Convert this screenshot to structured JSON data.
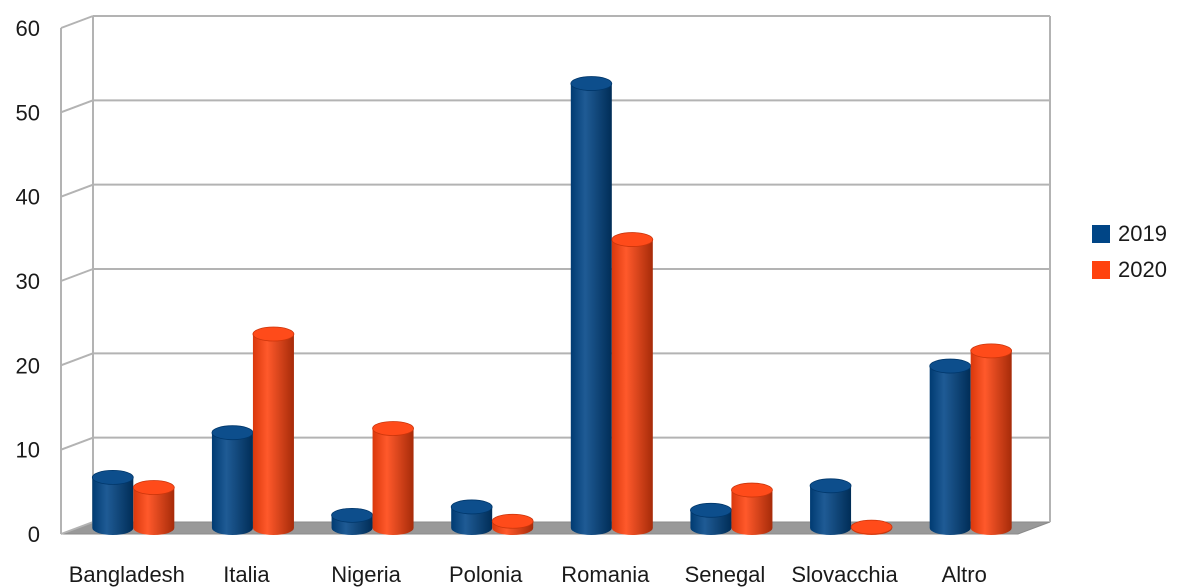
{
  "chart_data": {
    "type": "bar",
    "categories": [
      "Bangladesh",
      "Italia",
      "Nigeria",
      "Polonia",
      "Romania",
      "Senegal",
      "Slovacchia",
      "Altro"
    ],
    "series": [
      {
        "name": "2019",
        "color": "#004586",
        "values": [
          6,
          11.3,
          1.5,
          2.5,
          52.7,
          2.1,
          5,
          19.2
        ]
      },
      {
        "name": "2020",
        "color": "#FF420E",
        "values": [
          4.8,
          23,
          11.8,
          0.8,
          34.2,
          4.5,
          0.1,
          21
        ]
      }
    ],
    "title": "",
    "xlabel": "",
    "ylabel": "",
    "ylim": [
      0,
      60
    ],
    "yticks": [
      0,
      10,
      20,
      30,
      40,
      50,
      60
    ],
    "grid": true,
    "legend_position": "right",
    "style": "3d-cylinder"
  }
}
